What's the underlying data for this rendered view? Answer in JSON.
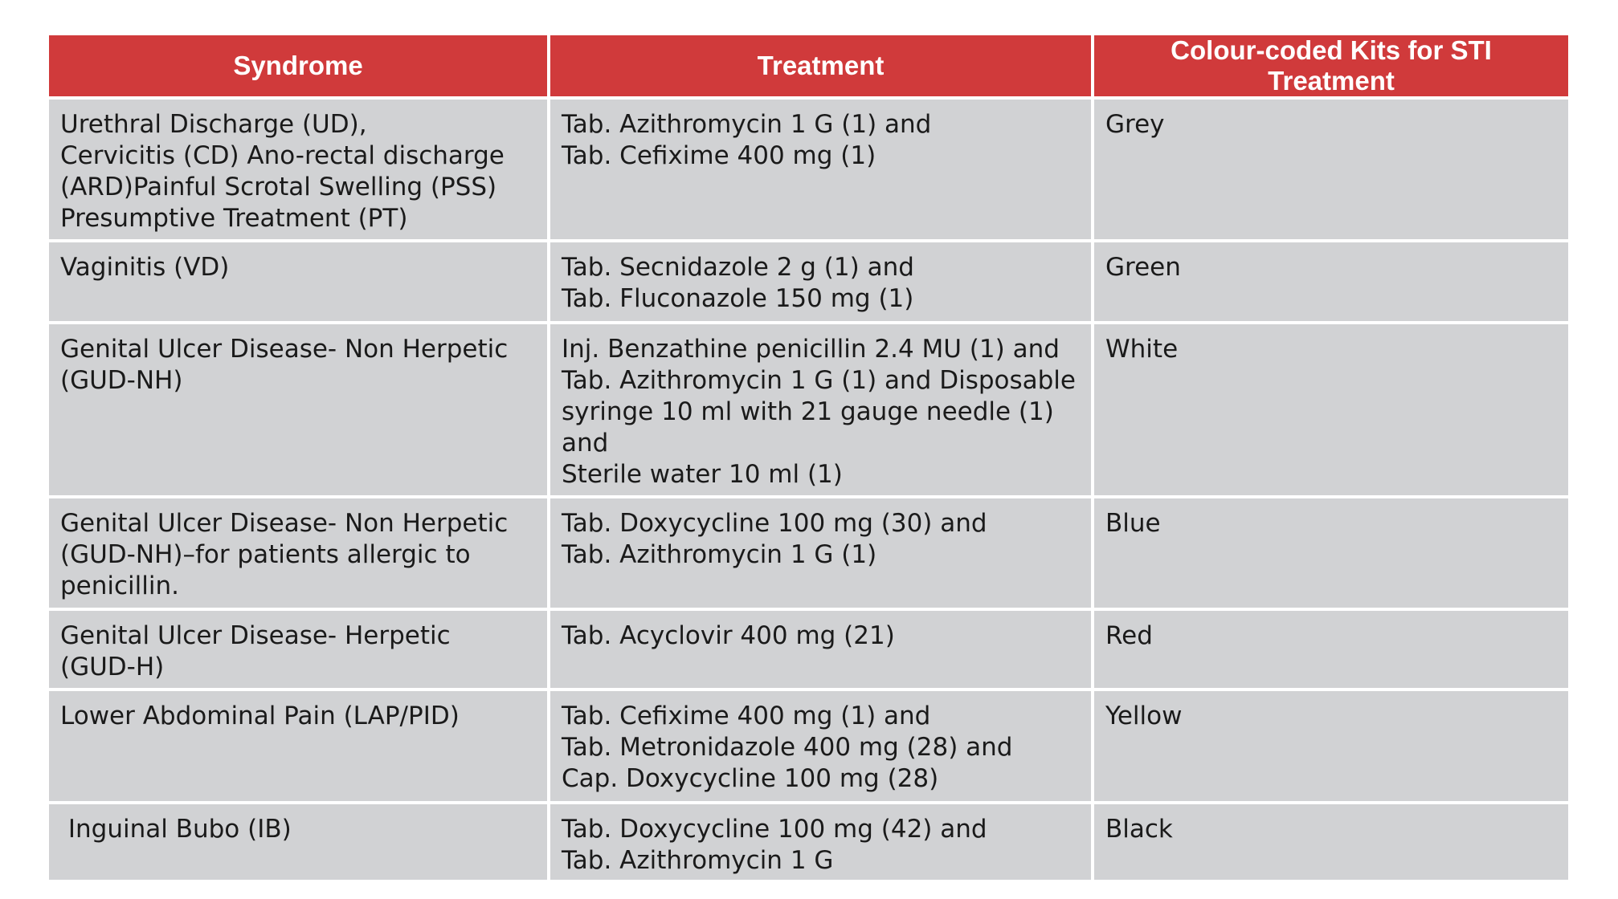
{
  "table": {
    "header": [
      "Syndrome",
      "Treatment",
      "Colour-coded Kits for STI Treatment"
    ],
    "rows": [
      [
        "Urethral Discharge (UD),\nCervicitis (CD) Ano-rectal discharge\n(ARD)Painful Scrotal Swelling (PSS)\nPresumptive Treatment (PT)",
        "Tab. Azithromycin 1 G (1) and\nTab. Cefixime 400 mg (1)",
        "Grey"
      ],
      [
        "Vaginitis (VD)",
        "Tab. Secnidazole 2 g (1) and\nTab. Fluconazole 150 mg (1)",
        "Green"
      ],
      [
        "Genital Ulcer Disease- Non Herpetic\n(GUD-NH)",
        "Inj. Benzathine penicillin 2.4 MU (1) and\nTab. Azithromycin 1 G (1) and Disposable\nsyringe 10 ml with 21 gauge needle (1)\nand\nSterile water 10 ml (1)",
        "White"
      ],
      [
        "Genital Ulcer Disease- Non Herpetic\n(GUD-NH)–for patients allergic to\npenicillin.",
        "Tab. Doxycycline 100 mg (30) and\nTab. Azithromycin 1 G (1)",
        "Blue"
      ],
      [
        "Genital Ulcer Disease- Herpetic\n(GUD-H)",
        "Tab. Acyclovir 400 mg (21)",
        "Red"
      ],
      [
        "Lower Abdominal Pain (LAP/PID)",
        "Tab. Cefixime 400 mg (1) and\nTab. Metronidazole 400 mg (28) and\nCap. Doxycycline 100 mg (28)",
        "Yellow"
      ],
      [
        " Inguinal Bubo (IB)",
        "Tab. Doxycycline 100 mg (42) and\nTab. Azithromycin 1 G",
        "Black"
      ]
    ]
  }
}
